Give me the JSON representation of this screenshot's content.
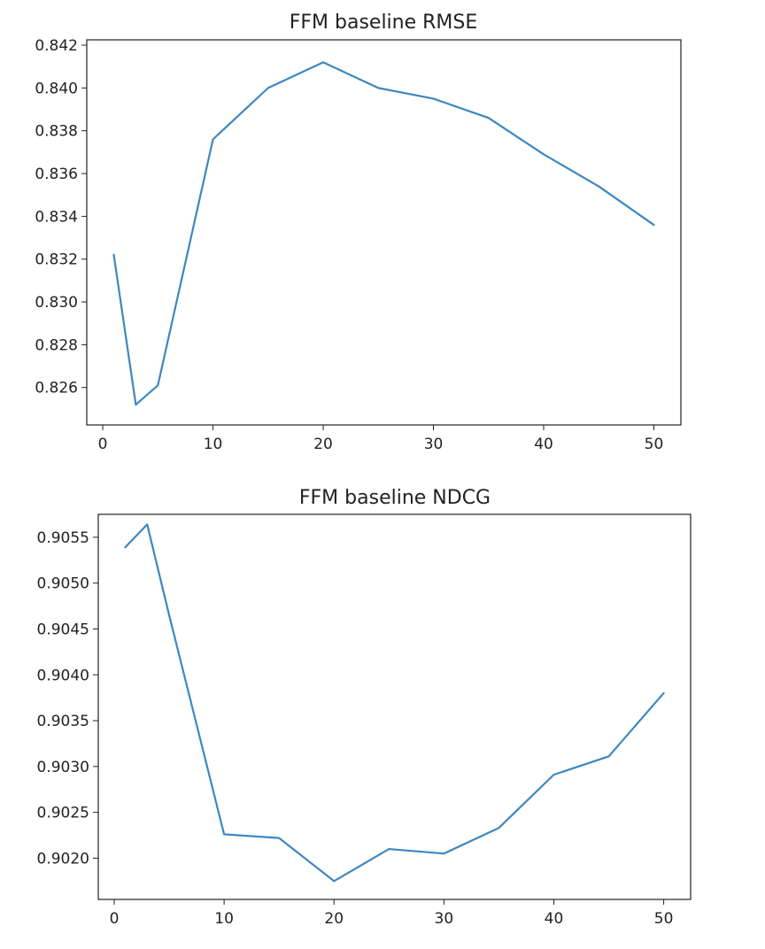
{
  "chart_data": [
    {
      "type": "line",
      "title": "FFM baseline RMSE",
      "xlabel": "",
      "ylabel": "",
      "x": [
        1,
        3,
        5,
        10,
        15,
        20,
        25,
        30,
        35,
        40,
        45,
        50
      ],
      "series": [
        {
          "values": [
            0.8322,
            0.8252,
            0.8261,
            0.8376,
            0.84,
            0.8412,
            0.84,
            0.8395,
            0.8386,
            0.8369,
            0.8354,
            0.8336
          ]
        }
      ],
      "xlim": [
        -1.45,
        52.45
      ],
      "ylim": [
        0.82425,
        0.84225
      ],
      "xticks": [
        0,
        10,
        20,
        30,
        40,
        50
      ],
      "xtick_labels": [
        "0",
        "10",
        "20",
        "30",
        "40",
        "50"
      ],
      "yticks": [
        0.826,
        0.828,
        0.83,
        0.832,
        0.834,
        0.836,
        0.838,
        0.84,
        0.842
      ],
      "ytick_labels": [
        "0.826",
        "0.828",
        "0.830",
        "0.832",
        "0.834",
        "0.836",
        "0.838",
        "0.840",
        "0.842"
      ],
      "grid": false,
      "color": "#3d87c0"
    },
    {
      "type": "line",
      "title": "FFM baseline NDCG",
      "xlabel": "",
      "ylabel": "",
      "x": [
        1,
        3,
        5,
        10,
        15,
        20,
        25,
        30,
        35,
        40,
        45,
        50
      ],
      "series": [
        {
          "values": [
            0.90539,
            0.90564,
            0.90465,
            0.90226,
            0.90222,
            0.90175,
            0.9021,
            0.90205,
            0.90233,
            0.90291,
            0.90311,
            0.9038
          ]
        }
      ],
      "xlim": [
        -1.45,
        52.45
      ],
      "ylim": [
        0.90155,
        0.90575
      ],
      "xticks": [
        0,
        10,
        20,
        30,
        40,
        50
      ],
      "xtick_labels": [
        "0",
        "10",
        "20",
        "30",
        "40",
        "50"
      ],
      "yticks": [
        0.902,
        0.9025,
        0.903,
        0.9035,
        0.904,
        0.9045,
        0.905,
        0.9055
      ],
      "ytick_labels": [
        "0.9020",
        "0.9025",
        "0.9030",
        "0.9035",
        "0.9040",
        "0.9045",
        "0.9050",
        "0.9055"
      ],
      "grid": false,
      "color": "#3d87c0"
    }
  ]
}
